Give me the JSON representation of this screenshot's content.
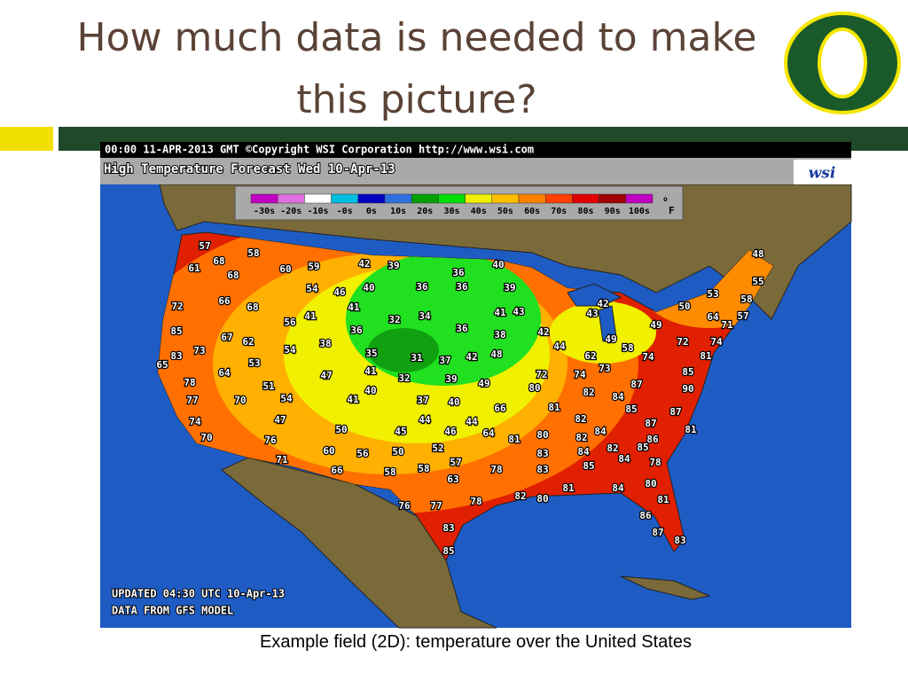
{
  "title": "How much data is needed to make this picture?",
  "caption": "Example field (2D): temperature over the United States",
  "map": {
    "header": "00:00 11-APR-2013 GMT ©Copyright WSI Corporation  http://www.wsi.com",
    "subheader": "High Temperature Forecast  Wed 10-Apr-13",
    "logo": "wsi",
    "legend": {
      "items": [
        {
          "label": "-30s",
          "color": "#c000c0"
        },
        {
          "label": "-20s",
          "color": "#e070e0"
        },
        {
          "label": "-10s",
          "color": "#ffffff"
        },
        {
          "label": "-0s",
          "color": "#00c0e0"
        },
        {
          "label": "0s",
          "color": "#0000c0"
        },
        {
          "label": "10s",
          "color": "#3070e0"
        },
        {
          "label": "20s",
          "color": "#00a000"
        },
        {
          "label": "30s",
          "color": "#00e000"
        },
        {
          "label": "40s",
          "color": "#f0f000"
        },
        {
          "label": "50s",
          "color": "#ffc000"
        },
        {
          "label": "60s",
          "color": "#ff8000"
        },
        {
          "label": "70s",
          "color": "#ff4000"
        },
        {
          "label": "80s",
          "color": "#e00000"
        },
        {
          "label": "90s",
          "color": "#a00000"
        },
        {
          "label": "100s",
          "color": "#c000c0"
        }
      ],
      "unit_degree": "o",
      "unit": "F"
    },
    "footer": [
      "UPDATED 04:30 UTC 10-Apr-13",
      "DATA FROM GFS MODEL"
    ],
    "temperatures": [
      57,
      58,
      68,
      61,
      68,
      60,
      59,
      42,
      39,
      36,
      40,
      48,
      55,
      54,
      46,
      40,
      36,
      36,
      39,
      53,
      58,
      72,
      66,
      68,
      41,
      32,
      34,
      41,
      43,
      42,
      43,
      50,
      64,
      57,
      71,
      56,
      41,
      36,
      36,
      38,
      42,
      49,
      85,
      67,
      62,
      38,
      44,
      49,
      58,
      72,
      74,
      73,
      83,
      54,
      35,
      31,
      37,
      42,
      48,
      62,
      74,
      81,
      65,
      53,
      73,
      64,
      47,
      41,
      32,
      39,
      49,
      72,
      74,
      85,
      78,
      51,
      40,
      80,
      82,
      87,
      90,
      77,
      70,
      54,
      41,
      37,
      40,
      66,
      84,
      81,
      85,
      87,
      74,
      47,
      44,
      44,
      82,
      87,
      70,
      50,
      45,
      46,
      64,
      81,
      80,
      82,
      84,
      86,
      81,
      76,
      52,
      60,
      56,
      50,
      83,
      84,
      82,
      85,
      84,
      71,
      57,
      58,
      78,
      66,
      58,
      63,
      78,
      83,
      85,
      80,
      81,
      84,
      82,
      80,
      81,
      76,
      77,
      78,
      86,
      83,
      87,
      83,
      85
    ]
  }
}
